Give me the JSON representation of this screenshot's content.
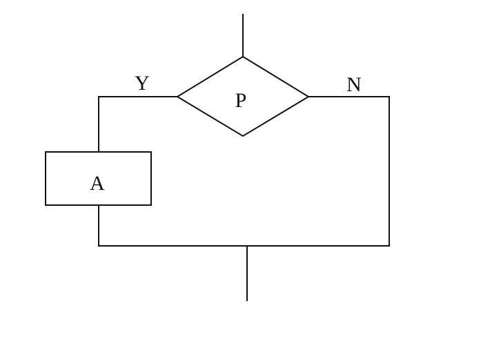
{
  "nodes": [
    {
      "label": "P"
    },
    {
      "label": "A"
    }
  ],
  "edges": [
    {
      "label": "Y"
    },
    {
      "label": "N"
    }
  ]
}
